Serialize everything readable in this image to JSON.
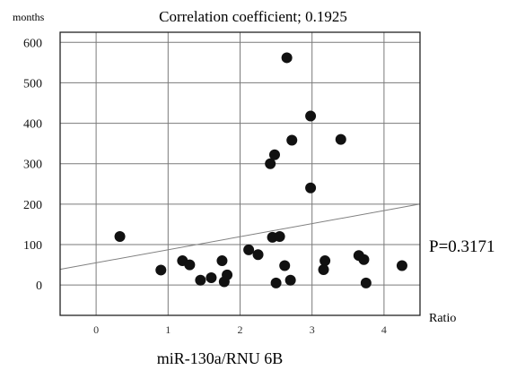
{
  "chart_data": {
    "type": "scatter",
    "title": "Correlation coefficient; 0.1925",
    "y_unit_label": "months",
    "x_unit_label": "Ratio",
    "xlabel": "miR-130a/RNU 6B",
    "annotation": "P=0.3171",
    "xlim": [
      -0.5,
      4.5
    ],
    "ylim": [
      -75,
      625
    ],
    "x_ticks": [
      0,
      1,
      2,
      3,
      4
    ],
    "y_ticks": [
      0,
      100,
      200,
      300,
      400,
      500,
      600
    ],
    "grid": true,
    "points": [
      {
        "x": 0.33,
        "y": 120
      },
      {
        "x": 0.9,
        "y": 37
      },
      {
        "x": 1.2,
        "y": 60
      },
      {
        "x": 1.3,
        "y": 50
      },
      {
        "x": 1.45,
        "y": 12
      },
      {
        "x": 1.6,
        "y": 18
      },
      {
        "x": 1.75,
        "y": 60
      },
      {
        "x": 1.78,
        "y": 8
      },
      {
        "x": 1.82,
        "y": 25
      },
      {
        "x": 2.12,
        "y": 87
      },
      {
        "x": 2.25,
        "y": 75
      },
      {
        "x": 2.42,
        "y": 300
      },
      {
        "x": 2.45,
        "y": 118
      },
      {
        "x": 2.48,
        "y": 322
      },
      {
        "x": 2.5,
        "y": 5
      },
      {
        "x": 2.55,
        "y": 120
      },
      {
        "x": 2.62,
        "y": 48
      },
      {
        "x": 2.65,
        "y": 562
      },
      {
        "x": 2.7,
        "y": 12
      },
      {
        "x": 2.72,
        "y": 358
      },
      {
        "x": 2.98,
        "y": 418
      },
      {
        "x": 2.98,
        "y": 240
      },
      {
        "x": 3.16,
        "y": 38
      },
      {
        "x": 3.18,
        "y": 60
      },
      {
        "x": 3.4,
        "y": 360
      },
      {
        "x": 3.65,
        "y": 73
      },
      {
        "x": 3.72,
        "y": 63
      },
      {
        "x": 3.75,
        "y": 5
      },
      {
        "x": 4.25,
        "y": 48
      }
    ],
    "trendline": {
      "slope": 32.26,
      "intercept": 55
    },
    "colors": {
      "points": "#111111",
      "grid": "#7a7a7a",
      "trendline": "#808080",
      "frame": "#222222",
      "text": "#111111"
    }
  }
}
